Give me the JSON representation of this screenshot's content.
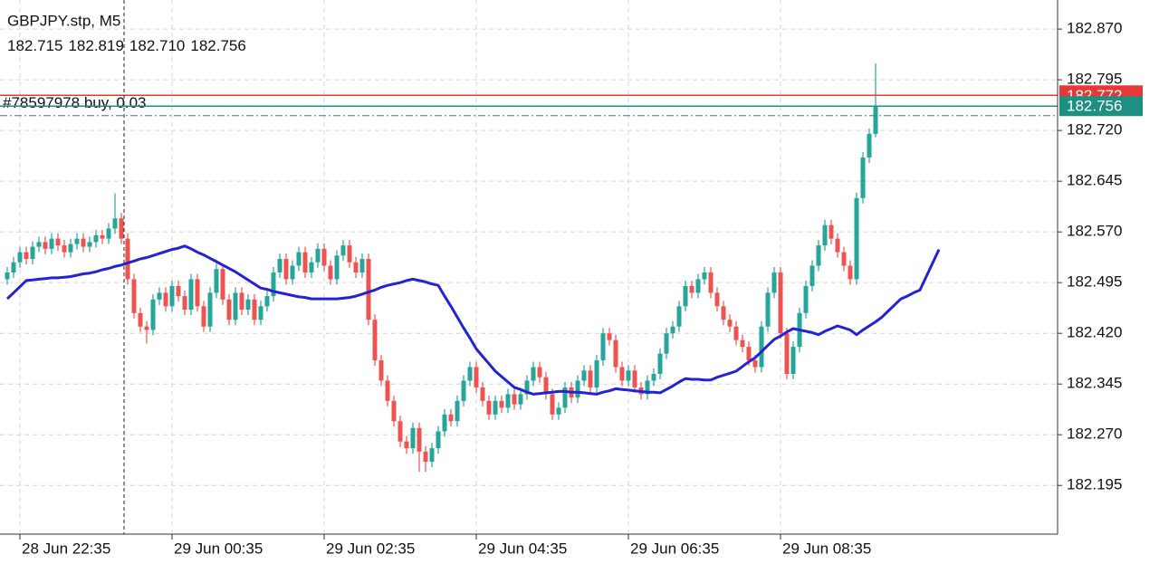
{
  "chart_data": {
    "type": "candlestick",
    "title": "GBPJPY.stp, M5",
    "header_ohlc": [
      182.715,
      182.819,
      {
        "value": 182.71,
        "label": "182.710"
      },
      182.756
    ],
    "categories": [
      null,
      null,
      "28 Jun 22:35",
      null,
      null,
      null,
      null,
      null,
      null,
      null,
      null,
      null,
      null,
      null,
      null,
      null,
      null,
      null,
      null,
      null,
      null,
      null,
      null,
      null,
      null,
      null,
      "29 Jun 00:35",
      null,
      null,
      null,
      null,
      null,
      null,
      null,
      null,
      null,
      null,
      null,
      null,
      null,
      null,
      null,
      null,
      null,
      null,
      null,
      null,
      null,
      null,
      null,
      "29 Jun 02:35",
      null,
      null,
      null,
      null,
      null,
      null,
      null,
      null,
      null,
      null,
      null,
      null,
      null,
      null,
      null,
      null,
      null,
      null,
      null,
      null,
      null,
      null,
      null,
      "29 Jun 04:35",
      null,
      null,
      null,
      null,
      null,
      null,
      null,
      null,
      null,
      null,
      null,
      null,
      null,
      null,
      null,
      null,
      null,
      null,
      null,
      null,
      null,
      null,
      null,
      "29 Jun 06:35",
      null,
      null,
      null,
      null,
      null,
      null,
      null,
      null,
      null,
      null,
      null,
      null,
      null,
      null,
      null,
      null,
      null,
      null,
      null,
      null,
      null,
      null,
      null,
      "29 Jun 08:35",
      null,
      null,
      null,
      null,
      null,
      null,
      null,
      null,
      null,
      null,
      null,
      null,
      null,
      null,
      null,
      null,
      null,
      null,
      null,
      null,
      null,
      null,
      null,
      null,
      null
    ],
    "open": [
      182.5,
      182.51,
      182.525,
      182.54,
      182.53,
      182.548,
      182.555,
      182.545,
      182.56,
      182.55,
      182.54,
      182.552,
      182.56,
      182.548,
      182.555,
      182.565,
      182.56,
      182.575,
      182.59,
      182.56,
      182.5,
      182.45,
      182.43,
      182.425,
      182.47,
      182.48,
      182.46,
      182.49,
      182.475,
      182.455,
      182.5,
      182.46,
      182.43,
      182.48,
      182.515,
      182.47,
      182.44,
      182.48,
      182.455,
      182.47,
      182.44,
      182.46,
      182.475,
      182.51,
      182.53,
      182.5,
      182.52,
      182.54,
      182.51,
      182.525,
      182.545,
      182.52,
      182.5,
      182.535,
      182.55,
      182.525,
      182.51,
      182.53,
      182.44,
      182.38,
      182.35,
      182.32,
      182.29,
      182.26,
      182.25,
      182.28,
      182.245,
      182.23,
      182.25,
      182.275,
      182.3,
      182.29,
      182.32,
      182.35,
      182.37,
      182.34,
      182.32,
      182.3,
      182.32,
      182.31,
      182.33,
      182.315,
      182.33,
      182.35,
      182.37,
      182.355,
      182.33,
      182.3,
      182.31,
      182.34,
      182.325,
      182.35,
      182.365,
      182.34,
      182.38,
      182.42,
      182.41,
      182.37,
      182.35,
      182.365,
      182.34,
      182.33,
      182.35,
      182.36,
      182.39,
      182.42,
      182.43,
      182.46,
      182.49,
      182.48,
      182.5,
      182.51,
      182.48,
      182.46,
      182.44,
      182.43,
      182.41,
      182.4,
      182.38,
      182.37,
      182.43,
      182.48,
      182.51,
      182.42,
      182.36,
      182.4,
      182.45,
      182.49,
      182.52,
      182.55,
      182.58,
      182.56,
      182.54,
      182.52,
      182.5,
      182.62,
      182.68,
      182.715,
      null,
      null,
      null,
      null,
      null,
      null,
      null,
      null,
      null,
      null
    ],
    "high": [
      182.518,
      182.533,
      182.548,
      182.548,
      182.556,
      182.563,
      182.563,
      182.568,
      182.568,
      182.558,
      182.56,
      182.568,
      182.568,
      182.563,
      182.573,
      182.573,
      182.583,
      182.627,
      182.598,
      182.568,
      182.508,
      182.458,
      182.438,
      182.478,
      182.488,
      182.488,
      182.498,
      182.498,
      182.483,
      182.508,
      182.508,
      182.468,
      182.488,
      182.523,
      182.523,
      182.478,
      182.488,
      182.488,
      182.478,
      182.478,
      182.468,
      182.483,
      182.518,
      182.538,
      182.538,
      182.528,
      182.548,
      182.548,
      182.533,
      182.553,
      182.553,
      182.528,
      182.543,
      182.558,
      182.558,
      182.533,
      182.538,
      182.538,
      182.448,
      182.388,
      182.358,
      182.328,
      182.298,
      182.268,
      182.288,
      182.288,
      182.253,
      182.258,
      182.283,
      182.308,
      182.308,
      182.328,
      182.358,
      182.378,
      182.378,
      182.348,
      182.328,
      182.328,
      182.328,
      182.338,
      182.338,
      182.338,
      182.358,
      182.378,
      182.378,
      182.363,
      182.338,
      182.318,
      182.348,
      182.348,
      182.358,
      182.373,
      182.373,
      182.388,
      182.428,
      182.428,
      182.418,
      182.378,
      182.373,
      182.373,
      182.348,
      182.358,
      182.368,
      182.398,
      182.428,
      182.438,
      182.468,
      182.498,
      182.498,
      182.508,
      182.518,
      182.518,
      182.488,
      182.468,
      182.448,
      182.438,
      182.418,
      182.408,
      182.388,
      182.438,
      182.488,
      182.518,
      182.518,
      182.428,
      182.408,
      182.458,
      182.498,
      182.528,
      182.558,
      182.588,
      182.588,
      182.568,
      182.548,
      182.528,
      182.628,
      182.688,
      182.723,
      182.819,
      null,
      null,
      null,
      null,
      null,
      null,
      null,
      null,
      null,
      null
    ],
    "low": [
      182.492,
      182.502,
      182.517,
      182.522,
      182.522,
      182.54,
      182.537,
      182.537,
      182.542,
      182.532,
      182.532,
      182.544,
      182.54,
      182.54,
      182.547,
      182.552,
      182.552,
      182.567,
      182.552,
      182.492,
      182.442,
      182.422,
      182.405,
      182.417,
      182.462,
      182.452,
      182.452,
      182.467,
      182.447,
      182.447,
      182.452,
      182.422,
      182.422,
      182.472,
      182.462,
      182.432,
      182.432,
      182.447,
      182.447,
      182.432,
      182.432,
      182.452,
      182.467,
      182.502,
      182.492,
      182.492,
      182.512,
      182.502,
      182.502,
      182.517,
      182.512,
      182.492,
      182.492,
      182.527,
      182.517,
      182.502,
      182.502,
      182.432,
      182.372,
      182.342,
      182.312,
      182.282,
      182.252,
      182.242,
      182.242,
      182.215,
      182.215,
      182.222,
      182.242,
      182.267,
      182.282,
      182.282,
      182.312,
      182.342,
      182.332,
      182.312,
      182.292,
      182.292,
      182.302,
      182.302,
      182.307,
      182.307,
      182.322,
      182.342,
      182.347,
      182.322,
      182.292,
      182.292,
      182.302,
      182.317,
      182.317,
      182.342,
      182.332,
      182.332,
      182.372,
      182.402,
      182.362,
      182.342,
      182.342,
      182.332,
      182.322,
      182.322,
      182.342,
      182.352,
      182.382,
      182.412,
      182.422,
      182.452,
      182.472,
      182.472,
      182.492,
      182.472,
      182.452,
      182.432,
      182.422,
      182.402,
      182.392,
      182.372,
      182.362,
      182.362,
      182.422,
      182.472,
      182.412,
      182.352,
      182.352,
      182.392,
      182.442,
      182.482,
      182.512,
      182.542,
      182.552,
      182.532,
      182.512,
      182.492,
      182.492,
      182.612,
      182.672,
      182.71,
      null,
      null,
      null,
      null,
      null,
      null,
      null,
      null,
      null,
      null
    ],
    "close": [
      182.51,
      182.525,
      182.54,
      182.53,
      182.548,
      182.555,
      182.545,
      182.56,
      182.55,
      182.54,
      182.552,
      182.56,
      182.548,
      182.555,
      182.565,
      182.56,
      182.575,
      182.59,
      182.56,
      182.5,
      182.45,
      182.43,
      182.425,
      182.47,
      182.48,
      182.46,
      182.49,
      182.475,
      182.455,
      182.5,
      182.46,
      182.43,
      182.48,
      182.515,
      182.47,
      182.44,
      182.48,
      182.455,
      182.47,
      182.44,
      182.46,
      182.475,
      182.51,
      182.53,
      182.5,
      182.52,
      182.54,
      182.51,
      182.525,
      182.545,
      182.52,
      182.5,
      182.535,
      182.55,
      182.525,
      182.51,
      182.53,
      182.44,
      182.38,
      182.35,
      182.32,
      182.29,
      182.26,
      182.25,
      182.28,
      182.245,
      182.23,
      182.25,
      182.275,
      182.3,
      182.29,
      182.32,
      182.35,
      182.37,
      182.34,
      182.32,
      182.3,
      182.32,
      182.31,
      182.33,
      182.315,
      182.33,
      182.35,
      182.37,
      182.355,
      182.33,
      182.3,
      182.31,
      182.34,
      182.325,
      182.35,
      182.365,
      182.34,
      182.38,
      182.42,
      182.41,
      182.37,
      182.35,
      182.365,
      182.34,
      182.33,
      182.35,
      182.36,
      182.39,
      182.42,
      182.43,
      182.46,
      182.49,
      182.48,
      182.5,
      182.51,
      182.48,
      182.46,
      182.44,
      182.43,
      182.41,
      182.4,
      182.38,
      182.37,
      182.43,
      182.48,
      182.51,
      182.42,
      182.36,
      182.4,
      182.45,
      182.49,
      182.52,
      182.55,
      182.58,
      182.56,
      182.54,
      182.52,
      182.5,
      182.62,
      182.68,
      182.715,
      182.756,
      null,
      null,
      null,
      null,
      null,
      null,
      null,
      null,
      null,
      null
    ],
    "up_color": "#26a69a",
    "down_color": "#ef5350",
    "moving_average": {
      "color": "#2323d4",
      "values": [
        182.471,
        182.48,
        182.489,
        182.498,
        182.499,
        182.5,
        182.501,
        182.502,
        182.502,
        182.503,
        182.504,
        182.506,
        182.508,
        182.509,
        182.511,
        182.514,
        182.516,
        182.519,
        182.521,
        182.524,
        182.527,
        182.53,
        182.532,
        182.535,
        182.538,
        182.541,
        182.544,
        182.546,
        182.549,
        182.545,
        182.54,
        182.536,
        182.531,
        182.526,
        182.521,
        182.516,
        182.511,
        182.505,
        182.499,
        182.493,
        182.487,
        182.485,
        182.482,
        182.48,
        182.478,
        182.476,
        182.474,
        182.473,
        182.471,
        182.471,
        182.471,
        182.471,
        182.471,
        182.472,
        182.473,
        182.475,
        182.478,
        182.481,
        182.484,
        182.488,
        182.491,
        182.493,
        182.495,
        182.498,
        182.5,
        182.498,
        182.496,
        182.493,
        182.491,
        182.475,
        182.46,
        182.444,
        182.428,
        182.413,
        182.397,
        182.386,
        182.375,
        182.364,
        182.356,
        182.348,
        182.34,
        182.337,
        182.333,
        182.33,
        182.331,
        182.332,
        182.333,
        182.334,
        182.334,
        182.333,
        182.333,
        182.332,
        182.331,
        182.33,
        182.333,
        182.335,
        182.338,
        182.337,
        182.336,
        182.335,
        182.334,
        182.333,
        182.333,
        182.332,
        182.337,
        182.342,
        182.348,
        182.353,
        182.352,
        182.352,
        182.351,
        182.351,
        182.355,
        182.358,
        182.361,
        182.364,
        182.371,
        182.378,
        182.384,
        182.393,
        182.402,
        182.411,
        182.416,
        182.422,
        182.427,
        182.425,
        182.423,
        182.421,
        182.418,
        182.423,
        182.427,
        182.431,
        182.428,
        182.425,
        182.418,
        182.425,
        182.431,
        182.437,
        182.444,
        182.453,
        182.462,
        182.471,
        182.475,
        182.48,
        182.484,
        182.504,
        182.524,
        182.544
      ]
    },
    "ask": {
      "value": 182.772,
      "color": "#e53935"
    },
    "bid": {
      "value": 182.756,
      "color": "#1e8f80"
    },
    "order": {
      "label": "#78597978 buy, 0.03",
      "price": 182.742,
      "color": "#1e8f80"
    },
    "ylim": [
      182.123,
      182.913
    ],
    "yticks": [
      {
        "value": 182.87,
        "label": "182.870"
      },
      182.795,
      {
        "value": 182.72,
        "label": "182.720"
      },
      182.645,
      {
        "value": 182.57,
        "label": "182.570"
      },
      182.495,
      {
        "value": 182.42,
        "label": "182.420"
      },
      182.345,
      {
        "value": 182.27,
        "label": "182.270"
      },
      182.195
    ],
    "grid": true
  }
}
